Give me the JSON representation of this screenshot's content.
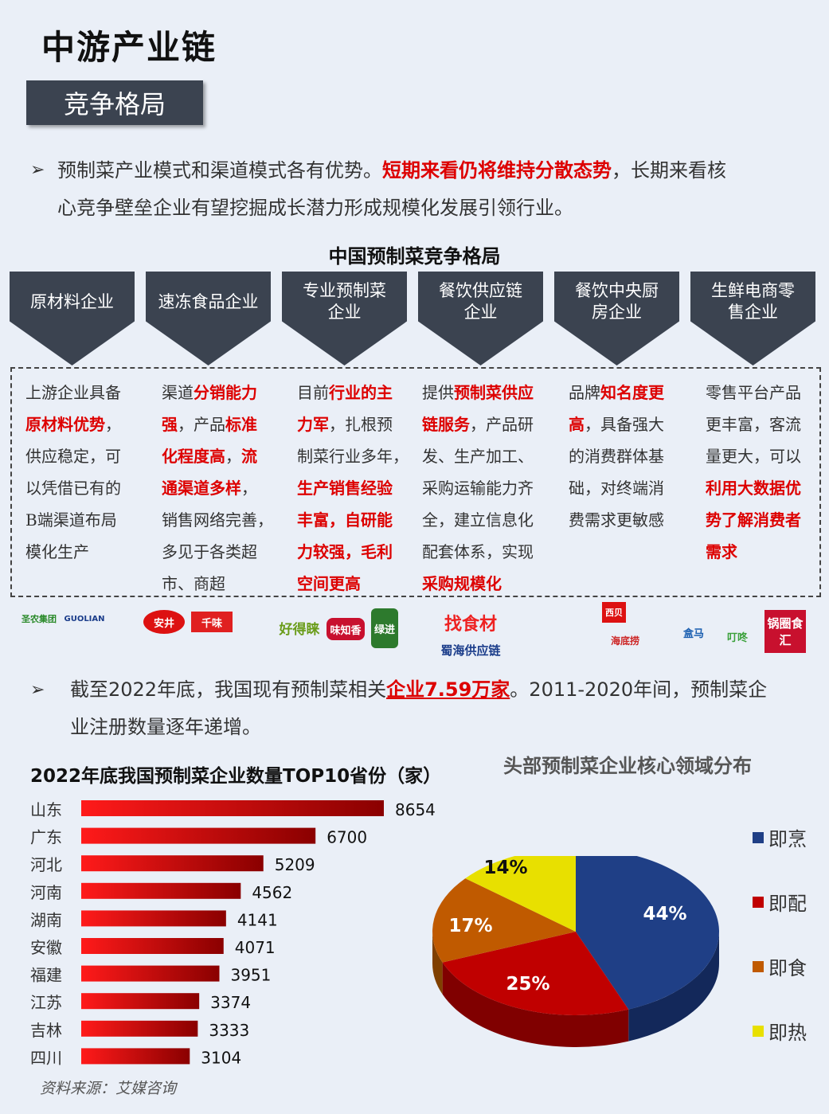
{
  "header": {
    "title": "中游产业链",
    "section": "竞争格局"
  },
  "intro": {
    "part1": "预制菜产业模式和渠道模式各有优势。",
    "highlight": "短期来看仍将维持分散态势",
    "part2": "，长期来看核",
    "line2": "心竞争壁垒企业有望挖掘成长潜力形成规模化发展引领行业。"
  },
  "landscape": {
    "title": "中国预制菜竞争格局",
    "categories": [
      "原材料企业",
      "速冻食品企业",
      "专业预制菜企业",
      "餐饮供应链企业",
      "餐饮中央厨房企业",
      "生鲜电商零售企业"
    ],
    "col1": {
      "l1": "上游企业具备",
      "l2": "原材料优势",
      "l2b": "，",
      "l3": "供应稳定，可",
      "l4": "以凭借已有的",
      "l5": "B端渠道布局",
      "l6": "模化生产"
    },
    "col2": {
      "l1a": "渠道",
      "l1b": "分销能力",
      "l2a": "强",
      "l2b": "，产品",
      "l2c": "标准",
      "l3a": "化程度高",
      "l3b": "，",
      "l3c": "流",
      "l4a": "通渠道多样",
      "l4b": "，",
      "l5": "销售网络完善，",
      "l6": "多见于各类超",
      "l7": "市、商超"
    },
    "col3": {
      "l1a": "目前",
      "l1b": "行业的主",
      "l2a": "力军",
      "l2b": "，扎根预",
      "l3": "制菜行业多年，",
      "l4": "生产销售经验",
      "l5a": "丰富，自研能",
      "l6a": "力较强，毛利",
      "l7a": "空间更高"
    },
    "col4": {
      "l1a": "提供",
      "l1b": "预制菜供应",
      "l2a": "链服务",
      "l2b": "，产品研",
      "l3": "发、生产加工、",
      "l4": "采购运输能力齐",
      "l5": "全，建立信息化",
      "l6": "配套体系，实现",
      "l7": "采购规模化"
    },
    "col5": {
      "l1a": "品牌",
      "l1b": "知名度更",
      "l2a": "高",
      "l2b": "，具备强大",
      "l3": "的消费群体基",
      "l4": "础，对终端消",
      "l5": "费需求更敏感"
    },
    "col6": {
      "l1": "零售平台产品",
      "l2": "更丰富，客流",
      "l3": "量更大，可以",
      "l4": "利用大数据优",
      "l5": "势了解消费者",
      "l6": "需求"
    }
  },
  "logos": {
    "l1": "圣农集团",
    "l2": "GUOLIAN",
    "l3": "安井",
    "l4": "千味",
    "l5": "好得睐",
    "l6": "味知香",
    "l7": "绿进",
    "l8": "找食材",
    "l9": "蜀海供应链",
    "l10": "西贝",
    "l11": "海底捞",
    "l12": "盒马",
    "l13": "叮咚",
    "l14": "锅圈食汇"
  },
  "stat": {
    "part1": "截至2022年底，我国现有预制菜相关",
    "highlight": "企业7.59万家",
    "part2": "。2011-2020年间，预制菜企",
    "line2": "业注册数量逐年递增。"
  },
  "chart_data": [
    {
      "type": "bar",
      "title": "2022年底我国预制菜企业数量TOP10省份（家）",
      "categories": [
        "山东",
        "广东",
        "河北",
        "河南",
        "湖南",
        "安徽",
        "福建",
        "江苏",
        "吉林",
        "四川"
      ],
      "values": [
        8654,
        6700,
        5209,
        4562,
        4141,
        4071,
        3951,
        3374,
        3333,
        3104
      ],
      "orientation": "horizontal",
      "color": "#c00000"
    },
    {
      "type": "pie",
      "title": "头部预制菜企业核心领域分布",
      "labels": [
        "即烹",
        "即配",
        "即食",
        "即热"
      ],
      "values": [
        44,
        25,
        17,
        14
      ],
      "value_labels": [
        "44%",
        "25%",
        "17%",
        "14%"
      ],
      "colors": [
        "#1f3f86",
        "#c00000",
        "#c05a00",
        "#e8e000"
      ],
      "legend": "right"
    }
  ],
  "footer": {
    "source": "资料来源：艾媒咨询"
  }
}
